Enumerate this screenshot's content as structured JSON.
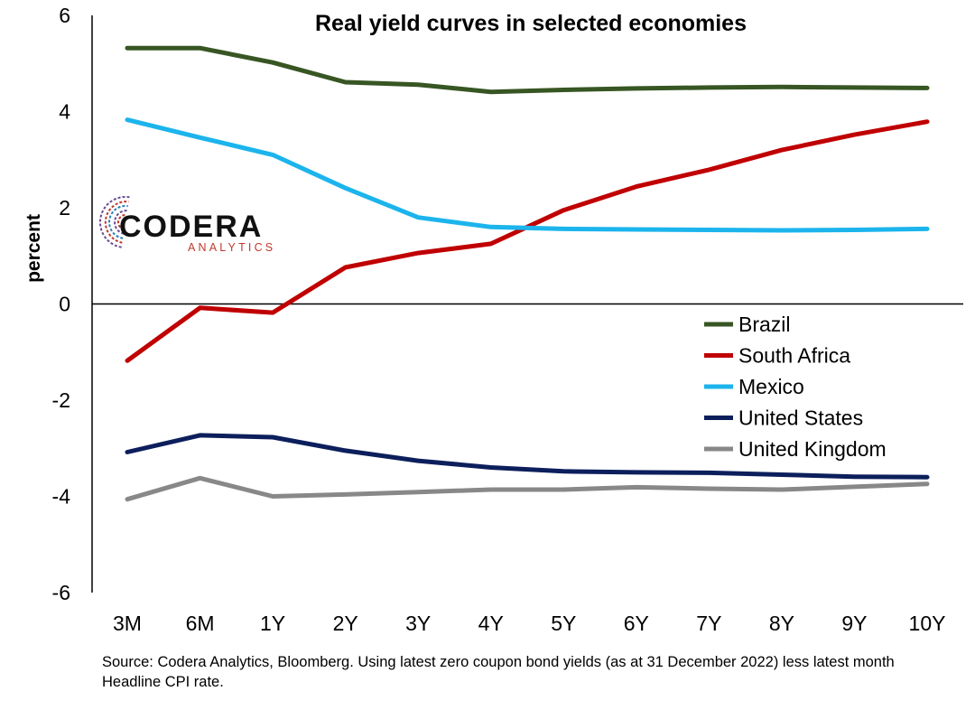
{
  "chart_data": {
    "type": "line",
    "title": "Real yield curves in selected economies",
    "ylabel": "percent",
    "xlabel": "",
    "categories": [
      "3M",
      "6M",
      "1Y",
      "2Y",
      "3Y",
      "4Y",
      "5Y",
      "6Y",
      "7Y",
      "8Y",
      "9Y",
      "10Y"
    ],
    "ylim": [
      -6,
      6
    ],
    "yticks": [
      6,
      4,
      2,
      0,
      -2,
      -4,
      -6
    ],
    "ytick_labels": [
      "6",
      "4",
      "2",
      "0",
      "-2",
      "-4",
      "-6"
    ],
    "grid": false,
    "legend_position": "right",
    "series": [
      {
        "name": "Brazil",
        "color": "#375623",
        "values": [
          5.32,
          5.32,
          5.02,
          4.61,
          4.56,
          4.41,
          4.45,
          4.48,
          4.5,
          4.51,
          4.5,
          4.49
        ]
      },
      {
        "name": "South Africa",
        "color": "#c00000",
        "values": [
          -1.18,
          -0.08,
          -0.18,
          0.76,
          1.06,
          1.25,
          1.95,
          2.44,
          2.79,
          3.2,
          3.52,
          3.79
        ]
      },
      {
        "name": "Mexico",
        "color": "#1cb4ec",
        "values": [
          3.83,
          3.46,
          3.1,
          2.41,
          1.8,
          1.6,
          1.56,
          1.55,
          1.54,
          1.53,
          1.54,
          1.56
        ]
      },
      {
        "name": "United States",
        "color": "#0c1f5c",
        "values": [
          -3.08,
          -2.73,
          -2.77,
          -3.05,
          -3.26,
          -3.4,
          -3.48,
          -3.5,
          -3.51,
          -3.55,
          -3.59,
          -3.6
        ]
      },
      {
        "name": "United Kingdom",
        "color": "#888888",
        "values": [
          -4.06,
          -3.62,
          -4.0,
          -3.96,
          -3.91,
          -3.86,
          -3.86,
          -3.81,
          -3.84,
          -3.86,
          -3.8,
          -3.74
        ]
      }
    ]
  },
  "logo": {
    "name": "CODERA",
    "tagline": "ANALYTICS"
  },
  "source_note": "Source: Codera Analytics, Bloomberg. Using latest zero coupon bond yields (as at 31 December 2022) less latest month Headline CPI rate."
}
